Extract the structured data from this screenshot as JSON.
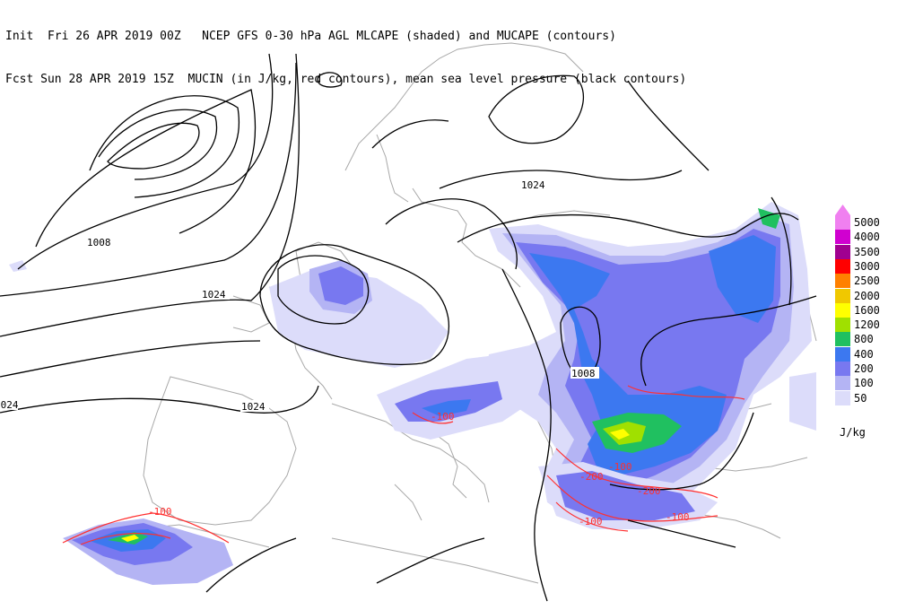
{
  "header": {
    "line1": "Init  Fri 26 APR 2019 00Z   NCEP GFS 0-30 hPa AGL MLCAPE (shaded) and MUCAPE (contours)",
    "line2": "Fcst Sun 28 APR 2019 15Z  MUCIN (in J/kg, red contours), mean sea level pressure (black contours)"
  },
  "legend": {
    "units": "J/kg",
    "levels": [
      {
        "label": "5000",
        "color": "#f080f0"
      },
      {
        "label": "4000",
        "color": "#d000d0"
      },
      {
        "label": "3500",
        "color": "#a00090"
      },
      {
        "label": "3000",
        "color": "#ff0000"
      },
      {
        "label": "2500",
        "color": "#ff8000"
      },
      {
        "label": "2000",
        "color": "#f0c800"
      },
      {
        "label": "1600",
        "color": "#ffff00"
      },
      {
        "label": "1200",
        "color": "#a0e000"
      },
      {
        "label": "800",
        "color": "#20c060"
      },
      {
        "label": "400",
        "color": "#3c78f0"
      },
      {
        "label": "200",
        "color": "#7878f0"
      },
      {
        "label": "100",
        "color": "#b4b4f4"
      },
      {
        "label": "50",
        "color": "#dcdcfa"
      }
    ]
  },
  "pressure_labels": [
    "1008",
    "1024",
    "1024",
    "1024",
    "1024",
    "1008"
  ],
  "mucin_labels": [
    "-100",
    "-200",
    "-100",
    "-200",
    "-100",
    "-100",
    "-100"
  ]
}
